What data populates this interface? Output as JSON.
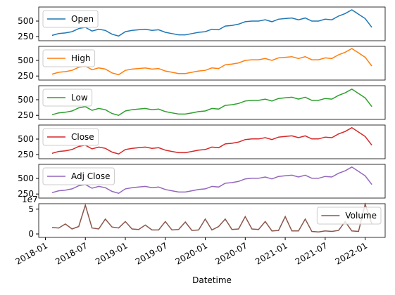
{
  "chart_data": [
    {
      "type": "line",
      "x": [
        "2018-02",
        "2018-03",
        "2018-04",
        "2018-05",
        "2018-06",
        "2018-07",
        "2018-08",
        "2018-09",
        "2018-10",
        "2018-11",
        "2018-12",
        "2019-01",
        "2019-02",
        "2019-03",
        "2019-04",
        "2019-05",
        "2019-06",
        "2019-07",
        "2019-08",
        "2019-09",
        "2019-10",
        "2019-11",
        "2019-12",
        "2020-01",
        "2020-02",
        "2020-03",
        "2020-04",
        "2020-05",
        "2020-06",
        "2020-07",
        "2020-08",
        "2020-09",
        "2020-10",
        "2020-11",
        "2020-12",
        "2021-01",
        "2021-02",
        "2021-03",
        "2021-04",
        "2021-05",
        "2021-06",
        "2021-07",
        "2021-08",
        "2021-09",
        "2021-10",
        "2021-11",
        "2021-12",
        "2022-01",
        "2022-02"
      ],
      "xlim": [
        "2017-12",
        "2022-04"
      ],
      "ylim": [
        185,
        725
      ],
      "yticks": [
        250,
        500
      ],
      "legend": "upper left",
      "series": [
        {
          "name": "Open",
          "color": "#1f77b4",
          "values": [
            270,
            300,
            310,
            330,
            380,
            400,
            340,
            370,
            350,
            290,
            260,
            330,
            350,
            360,
            370,
            350,
            360,
            320,
            300,
            280,
            280,
            300,
            320,
            330,
            370,
            360,
            420,
            430,
            450,
            490,
            500,
            500,
            520,
            490,
            530,
            540,
            550,
            520,
            550,
            500,
            500,
            530,
            520,
            580,
            620,
            680,
            610,
            540,
            400
          ]
        }
      ]
    },
    {
      "type": "line",
      "x": [
        "2018-02",
        "2018-03",
        "2018-04",
        "2018-05",
        "2018-06",
        "2018-07",
        "2018-08",
        "2018-09",
        "2018-10",
        "2018-11",
        "2018-12",
        "2019-01",
        "2019-02",
        "2019-03",
        "2019-04",
        "2019-05",
        "2019-06",
        "2019-07",
        "2019-08",
        "2019-09",
        "2019-10",
        "2019-11",
        "2019-12",
        "2020-01",
        "2020-02",
        "2020-03",
        "2020-04",
        "2020-05",
        "2020-06",
        "2020-07",
        "2020-08",
        "2020-09",
        "2020-10",
        "2020-11",
        "2020-12",
        "2021-01",
        "2021-02",
        "2021-03",
        "2021-04",
        "2021-05",
        "2021-06",
        "2021-07",
        "2021-08",
        "2021-09",
        "2021-10",
        "2021-11",
        "2021-12",
        "2022-01",
        "2022-02"
      ],
      "xlim": [
        "2017-12",
        "2022-04"
      ],
      "ylim": [
        185,
        725
      ],
      "yticks": [
        250,
        500
      ],
      "legend": "upper left",
      "series": [
        {
          "name": "High",
          "color": "#ff7f0e",
          "values": [
            280,
            310,
            320,
            340,
            390,
            410,
            350,
            380,
            360,
            300,
            270,
            340,
            360,
            370,
            380,
            360,
            370,
            330,
            310,
            290,
            290,
            310,
            330,
            340,
            380,
            370,
            430,
            440,
            460,
            500,
            510,
            510,
            530,
            500,
            540,
            550,
            560,
            530,
            560,
            510,
            510,
            540,
            530,
            590,
            630,
            690,
            620,
            550,
            410
          ]
        }
      ]
    },
    {
      "type": "line",
      "x": [
        "2018-02",
        "2018-03",
        "2018-04",
        "2018-05",
        "2018-06",
        "2018-07",
        "2018-08",
        "2018-09",
        "2018-10",
        "2018-11",
        "2018-12",
        "2019-01",
        "2019-02",
        "2019-03",
        "2019-04",
        "2019-05",
        "2019-06",
        "2019-07",
        "2019-08",
        "2019-09",
        "2019-10",
        "2019-11",
        "2019-12",
        "2020-01",
        "2020-02",
        "2020-03",
        "2020-04",
        "2020-05",
        "2020-06",
        "2020-07",
        "2020-08",
        "2020-09",
        "2020-10",
        "2020-11",
        "2020-12",
        "2021-01",
        "2021-02",
        "2021-03",
        "2021-04",
        "2021-05",
        "2021-06",
        "2021-07",
        "2021-08",
        "2021-09",
        "2021-10",
        "2021-11",
        "2021-12",
        "2022-01",
        "2022-02"
      ],
      "xlim": [
        "2017-12",
        "2022-04"
      ],
      "ylim": [
        185,
        725
      ],
      "yticks": [
        250,
        500
      ],
      "legend": "upper left",
      "series": [
        {
          "name": "Low",
          "color": "#2ca02c",
          "values": [
            260,
            290,
            300,
            320,
            370,
            390,
            330,
            360,
            340,
            280,
            250,
            320,
            340,
            350,
            360,
            340,
            350,
            310,
            290,
            270,
            270,
            290,
            310,
            320,
            360,
            350,
            410,
            420,
            440,
            480,
            490,
            490,
            510,
            480,
            520,
            530,
            540,
            510,
            540,
            490,
            490,
            520,
            510,
            570,
            610,
            670,
            600,
            530,
            390
          ]
        }
      ]
    },
    {
      "type": "line",
      "x": [
        "2018-02",
        "2018-03",
        "2018-04",
        "2018-05",
        "2018-06",
        "2018-07",
        "2018-08",
        "2018-09",
        "2018-10",
        "2018-11",
        "2018-12",
        "2019-01",
        "2019-02",
        "2019-03",
        "2019-04",
        "2019-05",
        "2019-06",
        "2019-07",
        "2019-08",
        "2019-09",
        "2019-10",
        "2019-11",
        "2019-12",
        "2020-01",
        "2020-02",
        "2020-03",
        "2020-04",
        "2020-05",
        "2020-06",
        "2020-07",
        "2020-08",
        "2020-09",
        "2020-10",
        "2020-11",
        "2020-12",
        "2021-01",
        "2021-02",
        "2021-03",
        "2021-04",
        "2021-05",
        "2021-06",
        "2021-07",
        "2021-08",
        "2021-09",
        "2021-10",
        "2021-11",
        "2021-12",
        "2022-01",
        "2022-02"
      ],
      "xlim": [
        "2017-12",
        "2022-04"
      ],
      "ylim": [
        185,
        725
      ],
      "yticks": [
        250,
        500
      ],
      "legend": "upper left",
      "series": [
        {
          "name": "Close",
          "color": "#d62728",
          "values": [
            272,
            302,
            312,
            332,
            382,
            402,
            342,
            372,
            352,
            292,
            262,
            332,
            352,
            362,
            372,
            352,
            362,
            322,
            302,
            282,
            282,
            302,
            322,
            332,
            372,
            362,
            422,
            432,
            452,
            492,
            502,
            502,
            522,
            492,
            532,
            542,
            552,
            522,
            552,
            502,
            502,
            532,
            522,
            582,
            622,
            682,
            612,
            542,
            402
          ]
        }
      ]
    },
    {
      "type": "line",
      "x": [
        "2018-02",
        "2018-03",
        "2018-04",
        "2018-05",
        "2018-06",
        "2018-07",
        "2018-08",
        "2018-09",
        "2018-10",
        "2018-11",
        "2018-12",
        "2019-01",
        "2019-02",
        "2019-03",
        "2019-04",
        "2019-05",
        "2019-06",
        "2019-07",
        "2019-08",
        "2019-09",
        "2019-10",
        "2019-11",
        "2019-12",
        "2020-01",
        "2020-02",
        "2020-03",
        "2020-04",
        "2020-05",
        "2020-06",
        "2020-07",
        "2020-08",
        "2020-09",
        "2020-10",
        "2020-11",
        "2020-12",
        "2021-01",
        "2021-02",
        "2021-03",
        "2021-04",
        "2021-05",
        "2021-06",
        "2021-07",
        "2021-08",
        "2021-09",
        "2021-10",
        "2021-11",
        "2021-12",
        "2022-01",
        "2022-02"
      ],
      "xlim": [
        "2017-12",
        "2022-04"
      ],
      "ylim": [
        185,
        725
      ],
      "yticks": [
        250,
        500
      ],
      "legend": "upper left",
      "series": [
        {
          "name": "Adj Close",
          "color": "#9467bd",
          "values": [
            272,
            302,
            312,
            332,
            382,
            402,
            342,
            372,
            352,
            292,
            262,
            332,
            352,
            362,
            372,
            352,
            362,
            322,
            302,
            282,
            282,
            302,
            322,
            332,
            372,
            362,
            422,
            432,
            452,
            492,
            502,
            502,
            522,
            492,
            532,
            542,
            552,
            522,
            552,
            502,
            502,
            532,
            522,
            582,
            622,
            682,
            612,
            542,
            402
          ]
        }
      ]
    },
    {
      "type": "line",
      "x": [
        "2018-02",
        "2018-03",
        "2018-04",
        "2018-05",
        "2018-06",
        "2018-07",
        "2018-08",
        "2018-09",
        "2018-10",
        "2018-11",
        "2018-12",
        "2019-01",
        "2019-02",
        "2019-03",
        "2019-04",
        "2019-05",
        "2019-06",
        "2019-07",
        "2019-08",
        "2019-09",
        "2019-10",
        "2019-11",
        "2019-12",
        "2020-01",
        "2020-02",
        "2020-03",
        "2020-04",
        "2020-05",
        "2020-06",
        "2020-07",
        "2020-08",
        "2020-09",
        "2020-10",
        "2020-11",
        "2020-12",
        "2021-01",
        "2021-02",
        "2021-03",
        "2021-04",
        "2021-05",
        "2021-06",
        "2021-07",
        "2021-08",
        "2021-09",
        "2021-10",
        "2021-11",
        "2021-12",
        "2022-01",
        "2022-02"
      ],
      "xlim": [
        "2017-12",
        "2022-04"
      ],
      "ylim": [
        -0.7,
        6.1
      ],
      "yticks": [
        0,
        5
      ],
      "y_offset_label": "1e7",
      "legend": "upper right",
      "xticks": [
        "2018-01",
        "2018-07",
        "2019-01",
        "2019-07",
        "2020-01",
        "2020-07",
        "2021-01",
        "2021-07",
        "2022-01"
      ],
      "xlabel": "Datetime",
      "series": [
        {
          "name": "Volume",
          "color": "#8c564b",
          "values": [
            1.3,
            1.2,
            2.0,
            1.0,
            1.5,
            5.8,
            1.2,
            1.0,
            3.0,
            1.4,
            1.2,
            2.5,
            1.0,
            0.9,
            1.8,
            0.8,
            0.8,
            2.5,
            0.8,
            0.9,
            2.4,
            0.7,
            0.8,
            3.0,
            0.8,
            1.5,
            3.0,
            0.9,
            1.0,
            3.5,
            1.0,
            0.9,
            2.5,
            0.6,
            0.7,
            3.5,
            0.6,
            0.6,
            3.0,
            0.5,
            0.4,
            0.6,
            0.5,
            0.7,
            2.5,
            0.6,
            0.5,
            6.0,
            2.0
          ]
        }
      ]
    }
  ]
}
